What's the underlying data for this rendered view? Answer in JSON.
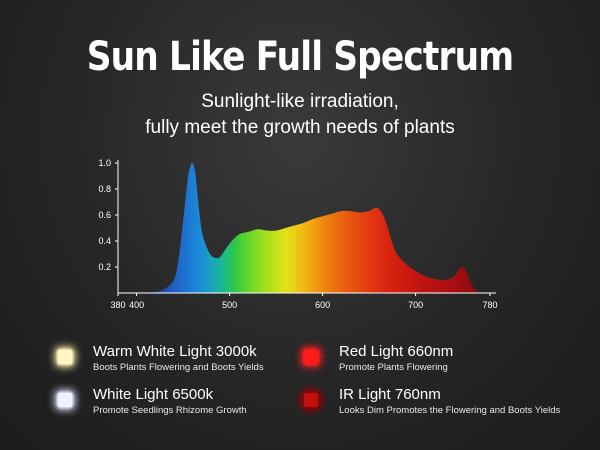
{
  "header": {
    "title": "Sun Like Full Spectrum",
    "subtitle_line1": "Sunlight-like irradiation,",
    "subtitle_line2": "fully meet the growth needs of plants"
  },
  "chart_data": {
    "type": "area",
    "title": "",
    "xlabel": "",
    "ylabel": "",
    "xlim": [
      380,
      780
    ],
    "ylim": [
      0,
      1.0
    ],
    "x_ticks": [
      380,
      400,
      500,
      600,
      700,
      780
    ],
    "y_ticks": [
      0.2,
      0.4,
      0.6,
      0.8,
      1.0
    ],
    "grid": false,
    "fill": "wavelength-colored gradient (blue to green to yellow to red)",
    "series": [
      {
        "x": [
          380,
          400,
          420,
          430,
          440,
          445,
          450,
          455,
          458,
          460,
          463,
          466,
          470,
          475,
          480,
          485,
          490,
          500,
          510,
          520,
          530,
          540,
          550,
          560,
          570,
          580,
          590,
          600,
          610,
          620,
          630,
          640,
          650,
          655,
          660,
          665,
          670,
          675,
          680,
          690,
          700,
          710,
          720,
          730,
          740,
          745,
          750,
          755,
          760,
          765,
          770,
          780
        ],
        "y": [
          0.0,
          0.0,
          0.01,
          0.03,
          0.1,
          0.25,
          0.55,
          0.88,
          0.98,
          1.0,
          0.93,
          0.72,
          0.48,
          0.36,
          0.29,
          0.27,
          0.28,
          0.38,
          0.45,
          0.47,
          0.49,
          0.48,
          0.48,
          0.5,
          0.52,
          0.54,
          0.57,
          0.59,
          0.61,
          0.63,
          0.63,
          0.62,
          0.63,
          0.65,
          0.65,
          0.6,
          0.5,
          0.38,
          0.3,
          0.22,
          0.17,
          0.13,
          0.11,
          0.1,
          0.12,
          0.16,
          0.2,
          0.16,
          0.07,
          0.02,
          0.0,
          0.0
        ]
      }
    ]
  },
  "legend": [
    {
      "name": "Warm White Light 3000k",
      "desc": "Boots Plants Flowering and Boots Yields",
      "color": "#fff6c8",
      "glow": "#fff3b0"
    },
    {
      "name": "White Light 6500k",
      "desc": "Promote Seedlings Rhizome Growth",
      "color": "#eef2ff",
      "glow": "#dfe6ff"
    },
    {
      "name": "Red Light 660nm",
      "desc": "Promote Plants Flowering",
      "color": "#ff1a1a",
      "glow": "#ff2020"
    },
    {
      "name": "IR Light 760nm",
      "desc": "Looks Dim Promotes the Flowering and Boots Yields",
      "color": "#c01010",
      "glow": "#a00000"
    }
  ]
}
